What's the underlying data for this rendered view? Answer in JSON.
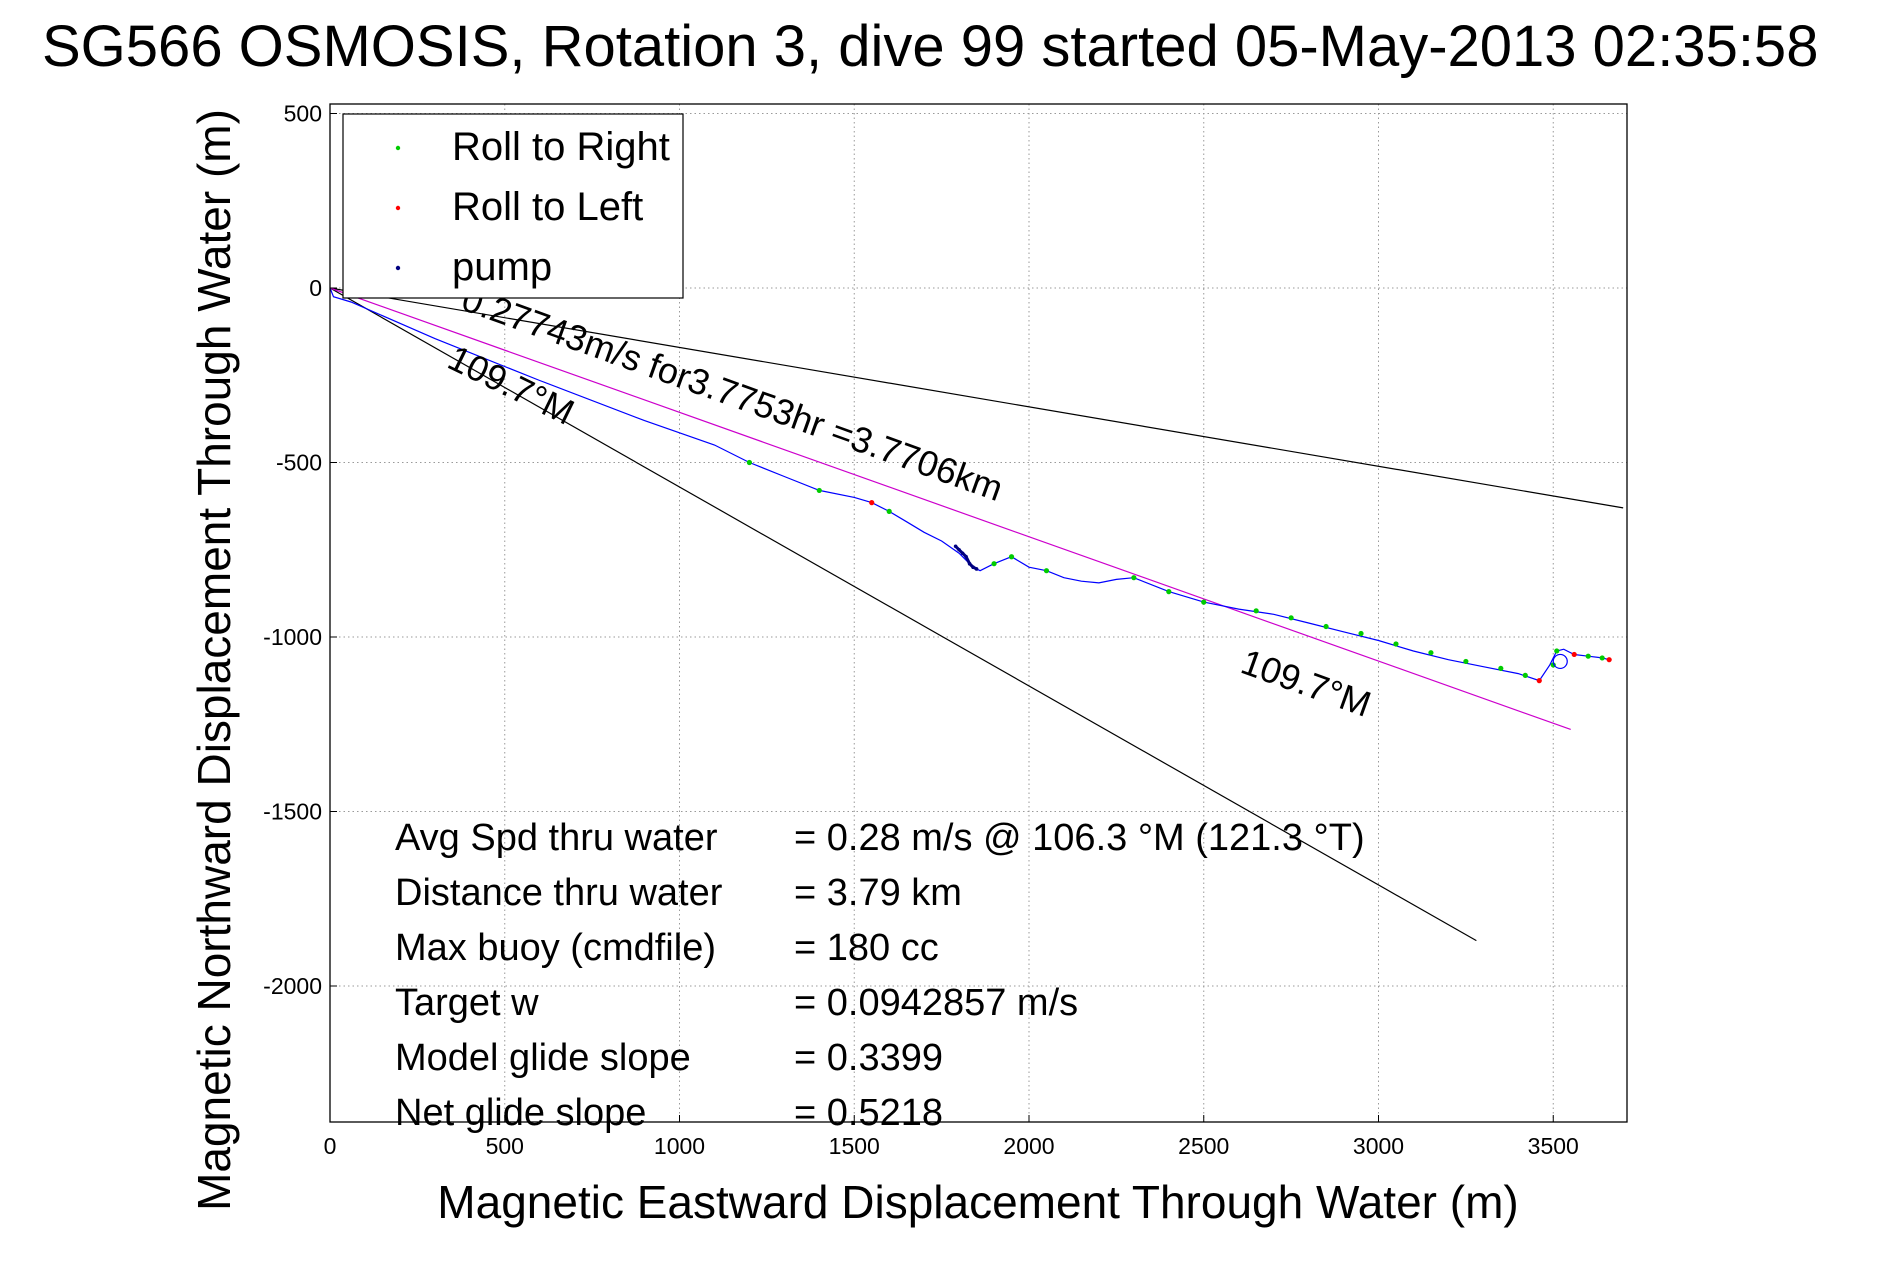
{
  "chart_data": {
    "type": "line",
    "title": "SG566 OSMOSIS, Rotation 3, dive 99 started 05-May-2013 02:35:58",
    "xlabel": "Magnetic Eastward Displacement Through Water (m)",
    "ylabel": "Magnetic Northward Displacement Through Water (m)",
    "xlim": [
      0,
      3700
    ],
    "ylim": [
      -2400,
      520
    ],
    "xticks": [
      0,
      500,
      1000,
      1500,
      2000,
      2500,
      3000,
      3500
    ],
    "yticks": [
      500,
      0,
      -500,
      -1000,
      -1500,
      -2000
    ],
    "grid": true,
    "legend": {
      "placement": "top-left",
      "entries": [
        {
          "label": "Roll to Right",
          "color": "#00cc00"
        },
        {
          "label": "Roll to Left",
          "color": "#ff0000"
        },
        {
          "label": "pump",
          "color": "#000080"
        }
      ]
    },
    "track": {
      "color": "#0000ff",
      "points": [
        [
          0,
          0
        ],
        [
          10,
          -25
        ],
        [
          60,
          -40
        ],
        [
          300,
          -145
        ],
        [
          600,
          -265
        ],
        [
          900,
          -380
        ],
        [
          1100,
          -450
        ],
        [
          1200,
          -500
        ],
        [
          1300,
          -540
        ],
        [
          1400,
          -580
        ],
        [
          1500,
          -600
        ],
        [
          1550,
          -615
        ],
        [
          1600,
          -640
        ],
        [
          1650,
          -670
        ],
        [
          1700,
          -700
        ],
        [
          1750,
          -725
        ],
        [
          1800,
          -760
        ],
        [
          1840,
          -800
        ],
        [
          1860,
          -810
        ],
        [
          1900,
          -790
        ],
        [
          1950,
          -770
        ],
        [
          2000,
          -800
        ],
        [
          2050,
          -810
        ],
        [
          2100,
          -830
        ],
        [
          2150,
          -840
        ],
        [
          2200,
          -845
        ],
        [
          2250,
          -835
        ],
        [
          2300,
          -830
        ],
        [
          2400,
          -870
        ],
        [
          2500,
          -900
        ],
        [
          2600,
          -920
        ],
        [
          2700,
          -935
        ],
        [
          2800,
          -960
        ],
        [
          2900,
          -985
        ],
        [
          3000,
          -1010
        ],
        [
          3100,
          -1040
        ],
        [
          3200,
          -1065
        ],
        [
          3300,
          -1085
        ],
        [
          3400,
          -1105
        ],
        [
          3460,
          -1125
        ],
        [
          3490,
          -1080
        ],
        [
          3510,
          -1040
        ],
        [
          3530,
          -1035
        ],
        [
          3560,
          -1050
        ],
        [
          3600,
          -1055
        ],
        [
          3640,
          -1060
        ],
        [
          3660,
          -1065
        ]
      ]
    },
    "roll_right_points": [
      [
        1200,
        -500
      ],
      [
        1400,
        -580
      ],
      [
        1600,
        -640
      ],
      [
        1900,
        -790
      ],
      [
        1950,
        -770
      ],
      [
        2050,
        -810
      ],
      [
        2300,
        -830
      ],
      [
        2400,
        -870
      ],
      [
        2500,
        -900
      ],
      [
        2650,
        -925
      ],
      [
        2750,
        -945
      ],
      [
        2850,
        -970
      ],
      [
        2950,
        -990
      ],
      [
        3050,
        -1020
      ],
      [
        3150,
        -1045
      ],
      [
        3250,
        -1070
      ],
      [
        3350,
        -1090
      ],
      [
        3420,
        -1110
      ],
      [
        3500,
        -1080
      ],
      [
        3510,
        -1040
      ],
      [
        3600,
        -1055
      ],
      [
        3640,
        -1060
      ]
    ],
    "roll_left_points": [
      [
        1550,
        -615
      ],
      [
        3460,
        -1125
      ],
      [
        3560,
        -1050
      ],
      [
        3660,
        -1065
      ]
    ],
    "pump_points": [
      [
        1790,
        -740
      ],
      [
        1800,
        -750
      ],
      [
        1810,
        -760
      ],
      [
        1820,
        -770
      ],
      [
        1830,
        -790
      ],
      [
        1840,
        -800
      ],
      [
        1850,
        -805
      ]
    ],
    "lines": [
      {
        "name": "current",
        "color": "#000000",
        "from": [
          0,
          0
        ],
        "to": [
          3700,
          -630
        ]
      },
      {
        "name": "heading-109.7",
        "color": "#000000",
        "from": [
          0,
          0
        ],
        "to": [
          3280,
          -1870
        ]
      },
      {
        "name": "avg-velocity",
        "color": "#cc00cc",
        "from": [
          0,
          0
        ],
        "to": [
          3550,
          -1265
        ]
      }
    ],
    "circle": {
      "at": [
        3520,
        -1070
      ],
      "color": "#0000ff"
    },
    "annotations": [
      {
        "text": "0.27743m/s for3.7753hr =3.7706km",
        "at": [
          370,
          -60
        ],
        "angle": 19.7
      },
      {
        "text": "109.7°M",
        "at": [
          330,
          -225
        ],
        "angle": 26
      },
      {
        "text": "109.7°M",
        "at": [
          2600,
          -1100
        ],
        "angle": 19.7
      }
    ],
    "stats": [
      {
        "label": "Avg Spd thru water",
        "value": "=  0.28 m/s @ 106.3 °M (121.3 °T)"
      },
      {
        "label": "Distance thru water",
        "value": "=  3.79 km"
      },
      {
        "label": "Max buoy (cmdfile)",
        "value": "= 180 cc"
      },
      {
        "label": "Target w",
        "value": "= 0.0942857 m/s"
      },
      {
        "label": "Model glide slope",
        "value": "= 0.3399"
      },
      {
        "label": "Net glide slope",
        "value": "= 0.5218"
      }
    ]
  }
}
